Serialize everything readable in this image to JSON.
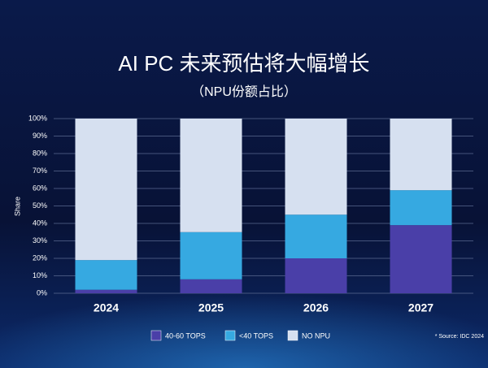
{
  "chart_data": {
    "type": "bar",
    "stacked": true,
    "title": "AI PC 未来预估将大幅增长",
    "subtitle": "（NPU份额占比）",
    "y_label": "Share",
    "note": "* Source: IDC 2024",
    "categories": [
      "2024",
      "2025",
      "2026",
      "2027"
    ],
    "series": [
      {
        "name": "40-60 TOPS",
        "color": "#4a3fa8",
        "values": [
          2,
          8,
          20,
          39
        ]
      },
      {
        "name": "<40 TOPS",
        "color": "#36a9e1",
        "values": [
          17,
          27,
          25,
          20
        ]
      },
      {
        "name": "NO NPU",
        "color": "#d6e0f0",
        "values": [
          81,
          65,
          55,
          41
        ]
      }
    ],
    "ylim": [
      0,
      100
    ],
    "yticks": [
      {
        "value": 0,
        "label": "0%"
      },
      {
        "value": 10,
        "label": "10%"
      },
      {
        "value": 20,
        "label": "20%"
      },
      {
        "value": 30,
        "label": "30%"
      },
      {
        "value": 40,
        "label": "40%"
      },
      {
        "value": 50,
        "label": "50%"
      },
      {
        "value": 60,
        "label": "60%"
      },
      {
        "value": 70,
        "label": "70%"
      },
      {
        "value": 80,
        "label": "80%"
      },
      {
        "value": 90,
        "label": "90%"
      },
      {
        "value": 100,
        "label": "100%"
      }
    ],
    "grid": true
  }
}
